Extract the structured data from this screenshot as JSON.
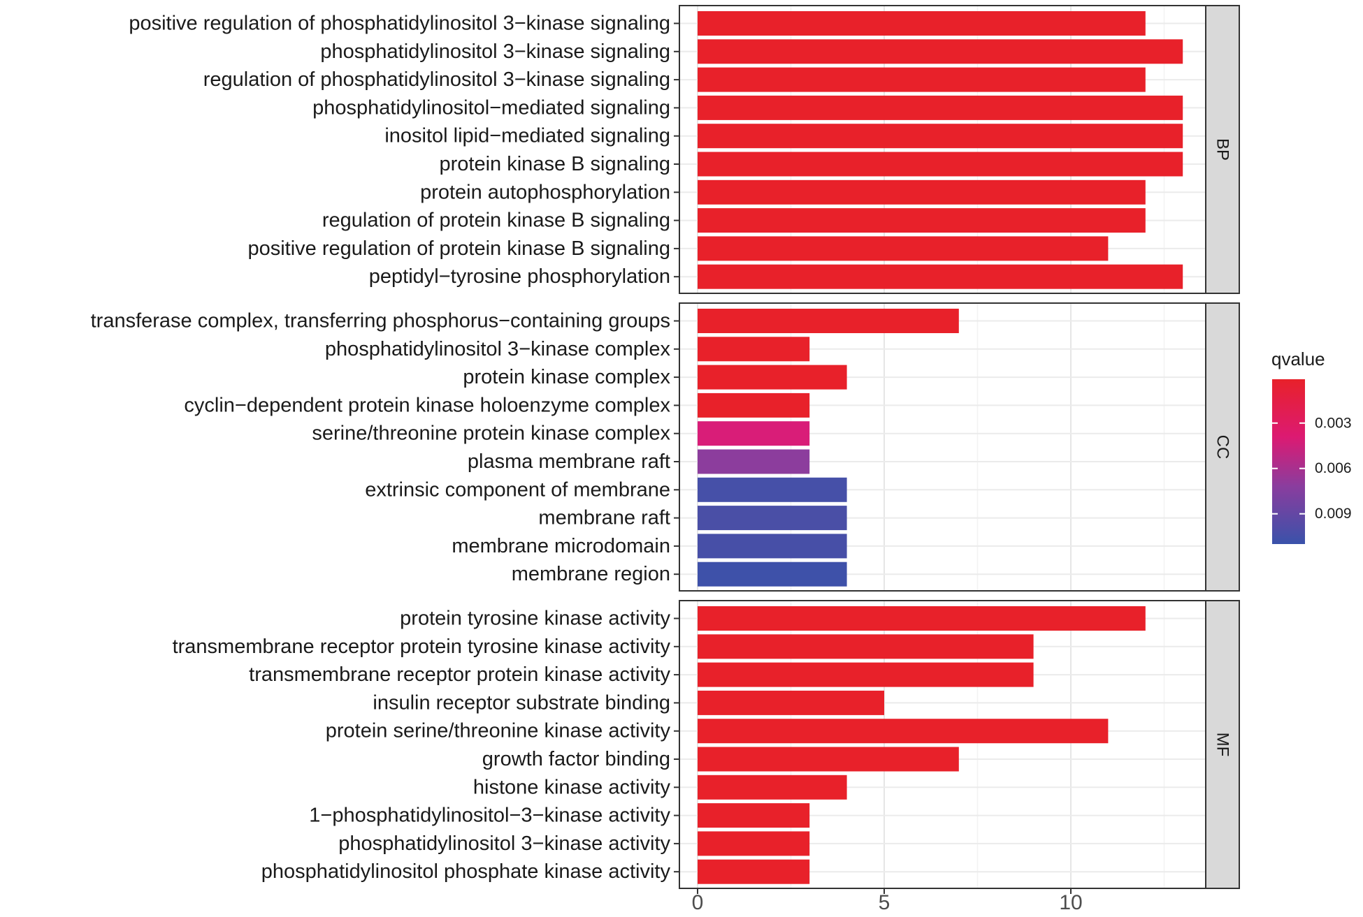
{
  "chart_data": {
    "type": "bar",
    "orientation": "horizontal",
    "title": "",
    "xlabel": "",
    "ylabel": "",
    "xlim": [
      0,
      13.5
    ],
    "x_ticks": [
      "0",
      "5",
      "10"
    ],
    "x_tick_values": [
      0,
      5,
      10
    ],
    "grid": true,
    "legend": {
      "title": "qvalue",
      "position": "right",
      "ticks": [
        "0.003",
        "0.006",
        "0.009"
      ],
      "tick_values": [
        0.003,
        0.006,
        0.009
      ],
      "range": [
        0.0001,
        0.011
      ],
      "colors_low_to_high": [
        "#e41a1c",
        "#de1a73",
        "#8c3a9e",
        "#3a4fa8"
      ]
    },
    "facets": [
      {
        "name": "BP",
        "categories": [
          "positive regulation of phosphatidylinositol 3−kinase signaling",
          "phosphatidylinositol 3−kinase signaling",
          "regulation of phosphatidylinositol 3−kinase signaling",
          "phosphatidylinositol−mediated signaling",
          "inositol lipid−mediated signaling",
          "protein kinase B signaling",
          "protein autophosphorylation",
          "regulation of protein kinase B signaling",
          "positive regulation of protein kinase B signaling",
          "peptidyl−tyrosine phosphorylation"
        ],
        "values": [
          12,
          13,
          12,
          13,
          13,
          13,
          12,
          12,
          11,
          13
        ],
        "colors": [
          "#e8212a",
          "#e8212a",
          "#e8212a",
          "#e8212a",
          "#e8212a",
          "#e8212a",
          "#e8212a",
          "#e8212a",
          "#e8212a",
          "#e8212a"
        ]
      },
      {
        "name": "CC",
        "categories": [
          "transferase complex, transferring phosphorus−containing groups",
          "phosphatidylinositol 3−kinase complex",
          "protein kinase complex",
          "cyclin−dependent protein kinase holoenzyme complex",
          "serine/threonine protein kinase complex",
          "plasma membrane raft",
          "extrinsic component of membrane",
          "membrane raft",
          "membrane microdomain",
          "membrane region"
        ],
        "values": [
          7,
          3,
          4,
          3,
          3,
          3,
          4,
          4,
          4,
          4
        ],
        "colors": [
          "#e8212a",
          "#e8212a",
          "#e8212a",
          "#e8212a",
          "#d91d78",
          "#8c3d9d",
          "#4650a8",
          "#4a4fa6",
          "#474fa7",
          "#3e51a9"
        ]
      },
      {
        "name": "MF",
        "categories": [
          "protein tyrosine kinase activity",
          "transmembrane receptor protein tyrosine kinase activity",
          "transmembrane receptor protein kinase activity",
          "insulin receptor substrate binding",
          "protein serine/threonine kinase activity",
          "growth factor binding",
          "histone kinase activity",
          "1−phosphatidylinositol−3−kinase activity",
          "phosphatidylinositol 3−kinase activity",
          "phosphatidylinositol phosphate kinase activity"
        ],
        "values": [
          12,
          9,
          9,
          5,
          11,
          7,
          4,
          3,
          3,
          3
        ],
        "colors": [
          "#e8212a",
          "#e8212a",
          "#e8212a",
          "#e8212a",
          "#e8212a",
          "#e8212a",
          "#e8212a",
          "#e8212a",
          "#e8212a",
          "#e8212a"
        ]
      }
    ]
  }
}
